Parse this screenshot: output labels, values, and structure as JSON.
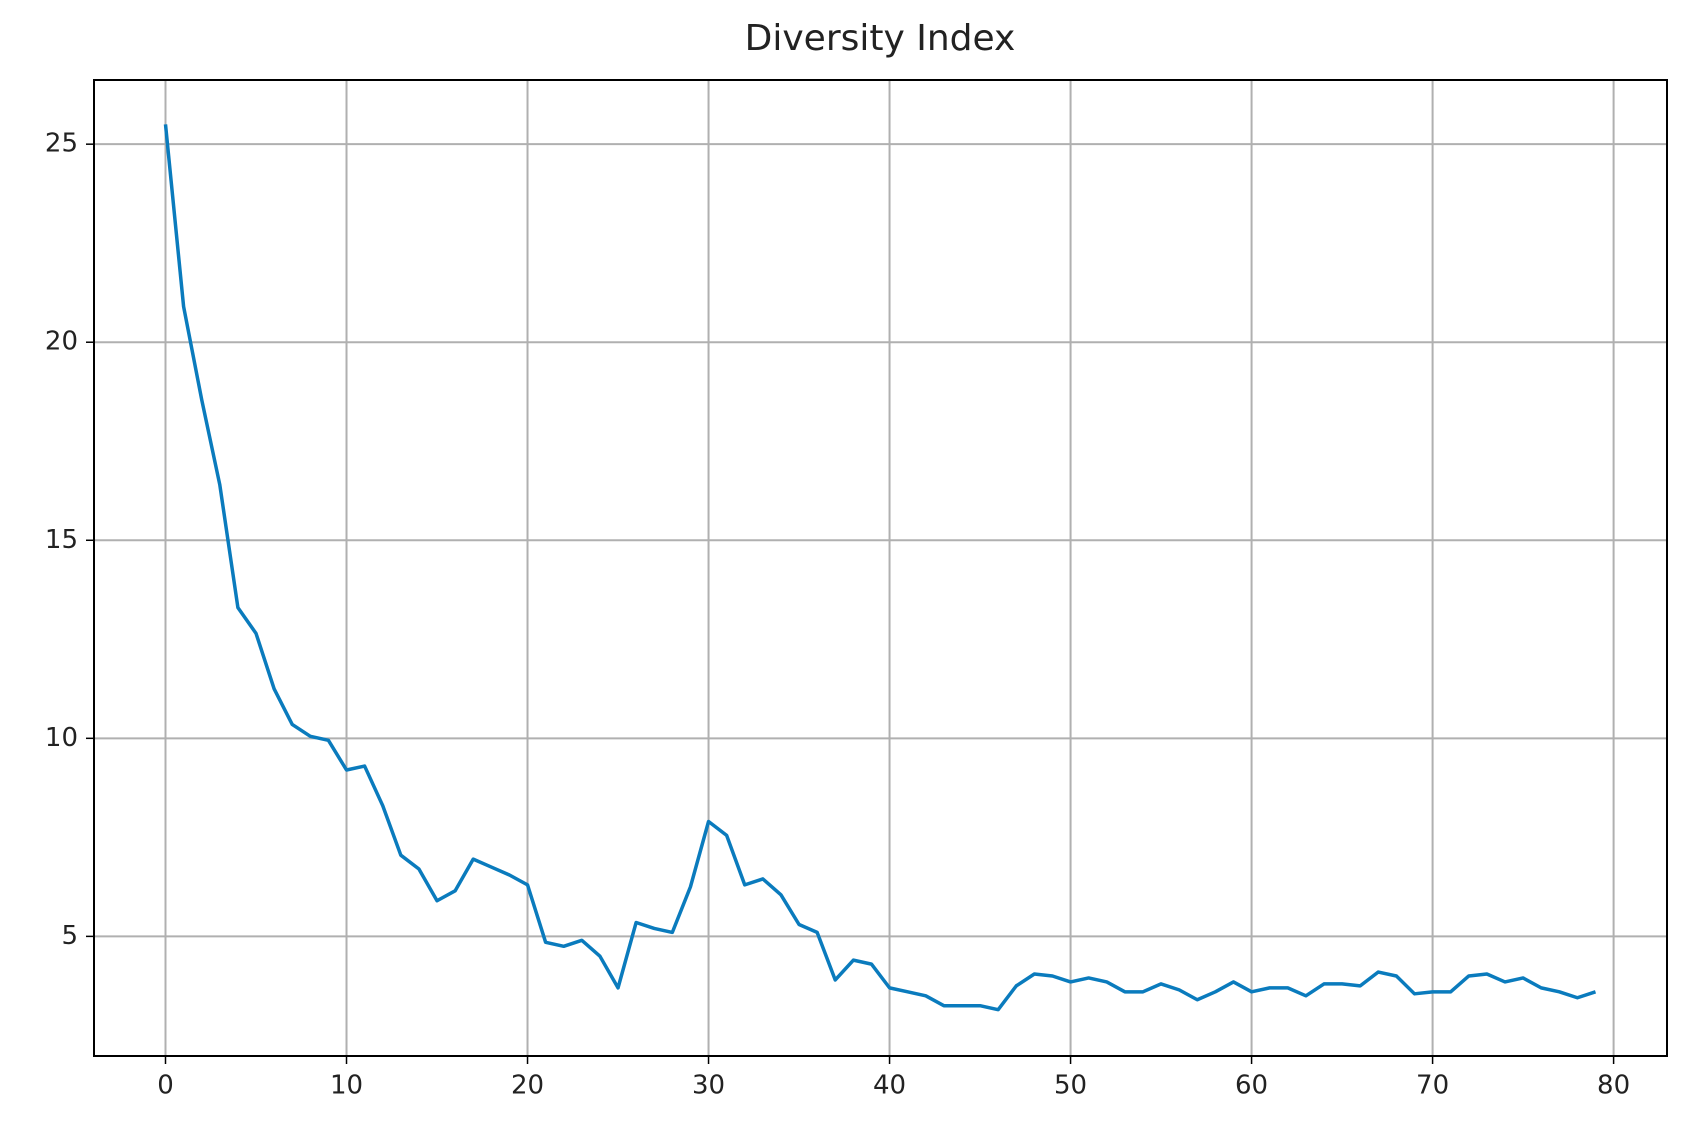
{
  "chart_data": {
    "type": "line",
    "title": "Diversity Index",
    "x": [
      0,
      1,
      2,
      3,
      4,
      5,
      6,
      7,
      8,
      9,
      10,
      11,
      12,
      13,
      14,
      15,
      16,
      17,
      18,
      19,
      20,
      21,
      22,
      23,
      24,
      25,
      26,
      27,
      28,
      29,
      30,
      31,
      32,
      33,
      34,
      35,
      36,
      37,
      38,
      39,
      40,
      41,
      42,
      43,
      44,
      45,
      46,
      47,
      48,
      49,
      50,
      51,
      52,
      53,
      54,
      55,
      56,
      57,
      58,
      59,
      60,
      61,
      62,
      63,
      64,
      65,
      66,
      67,
      68,
      69,
      70,
      71,
      72,
      73,
      74,
      75,
      76,
      77,
      78,
      79
    ],
    "series": [
      {
        "color": "#0a7bbd",
        "values": [
          25.5,
          20.9,
          18.55,
          16.4,
          13.3,
          12.65,
          11.25,
          10.35,
          10.05,
          9.95,
          9.2,
          9.3,
          8.3,
          7.05,
          6.7,
          5.9,
          6.15,
          6.95,
          6.75,
          6.55,
          6.3,
          4.85,
          4.75,
          4.9,
          4.5,
          3.7,
          5.35,
          5.2,
          5.1,
          6.25,
          7.9,
          7.55,
          6.3,
          6.45,
          6.05,
          5.3,
          5.1,
          3.9,
          4.4,
          4.3,
          3.7,
          3.6,
          3.5,
          3.25,
          3.25,
          3.25,
          3.15,
          3.75,
          4.05,
          4.0,
          3.85,
          3.95,
          3.85,
          3.6,
          3.6,
          3.8,
          3.65,
          3.4,
          3.6,
          3.85,
          3.6,
          3.7,
          3.7,
          3.5,
          3.8,
          3.8,
          3.75,
          4.1,
          4.0,
          3.55,
          3.6,
          3.6,
          4.0,
          4.05,
          3.85,
          3.95,
          3.7,
          3.6,
          3.45,
          3.6
        ]
      }
    ],
    "xlim": [
      -3.95,
      82.95
    ],
    "xticks": [
      0,
      10,
      20,
      30,
      40,
      50,
      60,
      70,
      80
    ],
    "ylim": [
      1.98,
      26.62
    ],
    "yticks": [
      5,
      10,
      15,
      20,
      25
    ],
    "grid": true
  }
}
